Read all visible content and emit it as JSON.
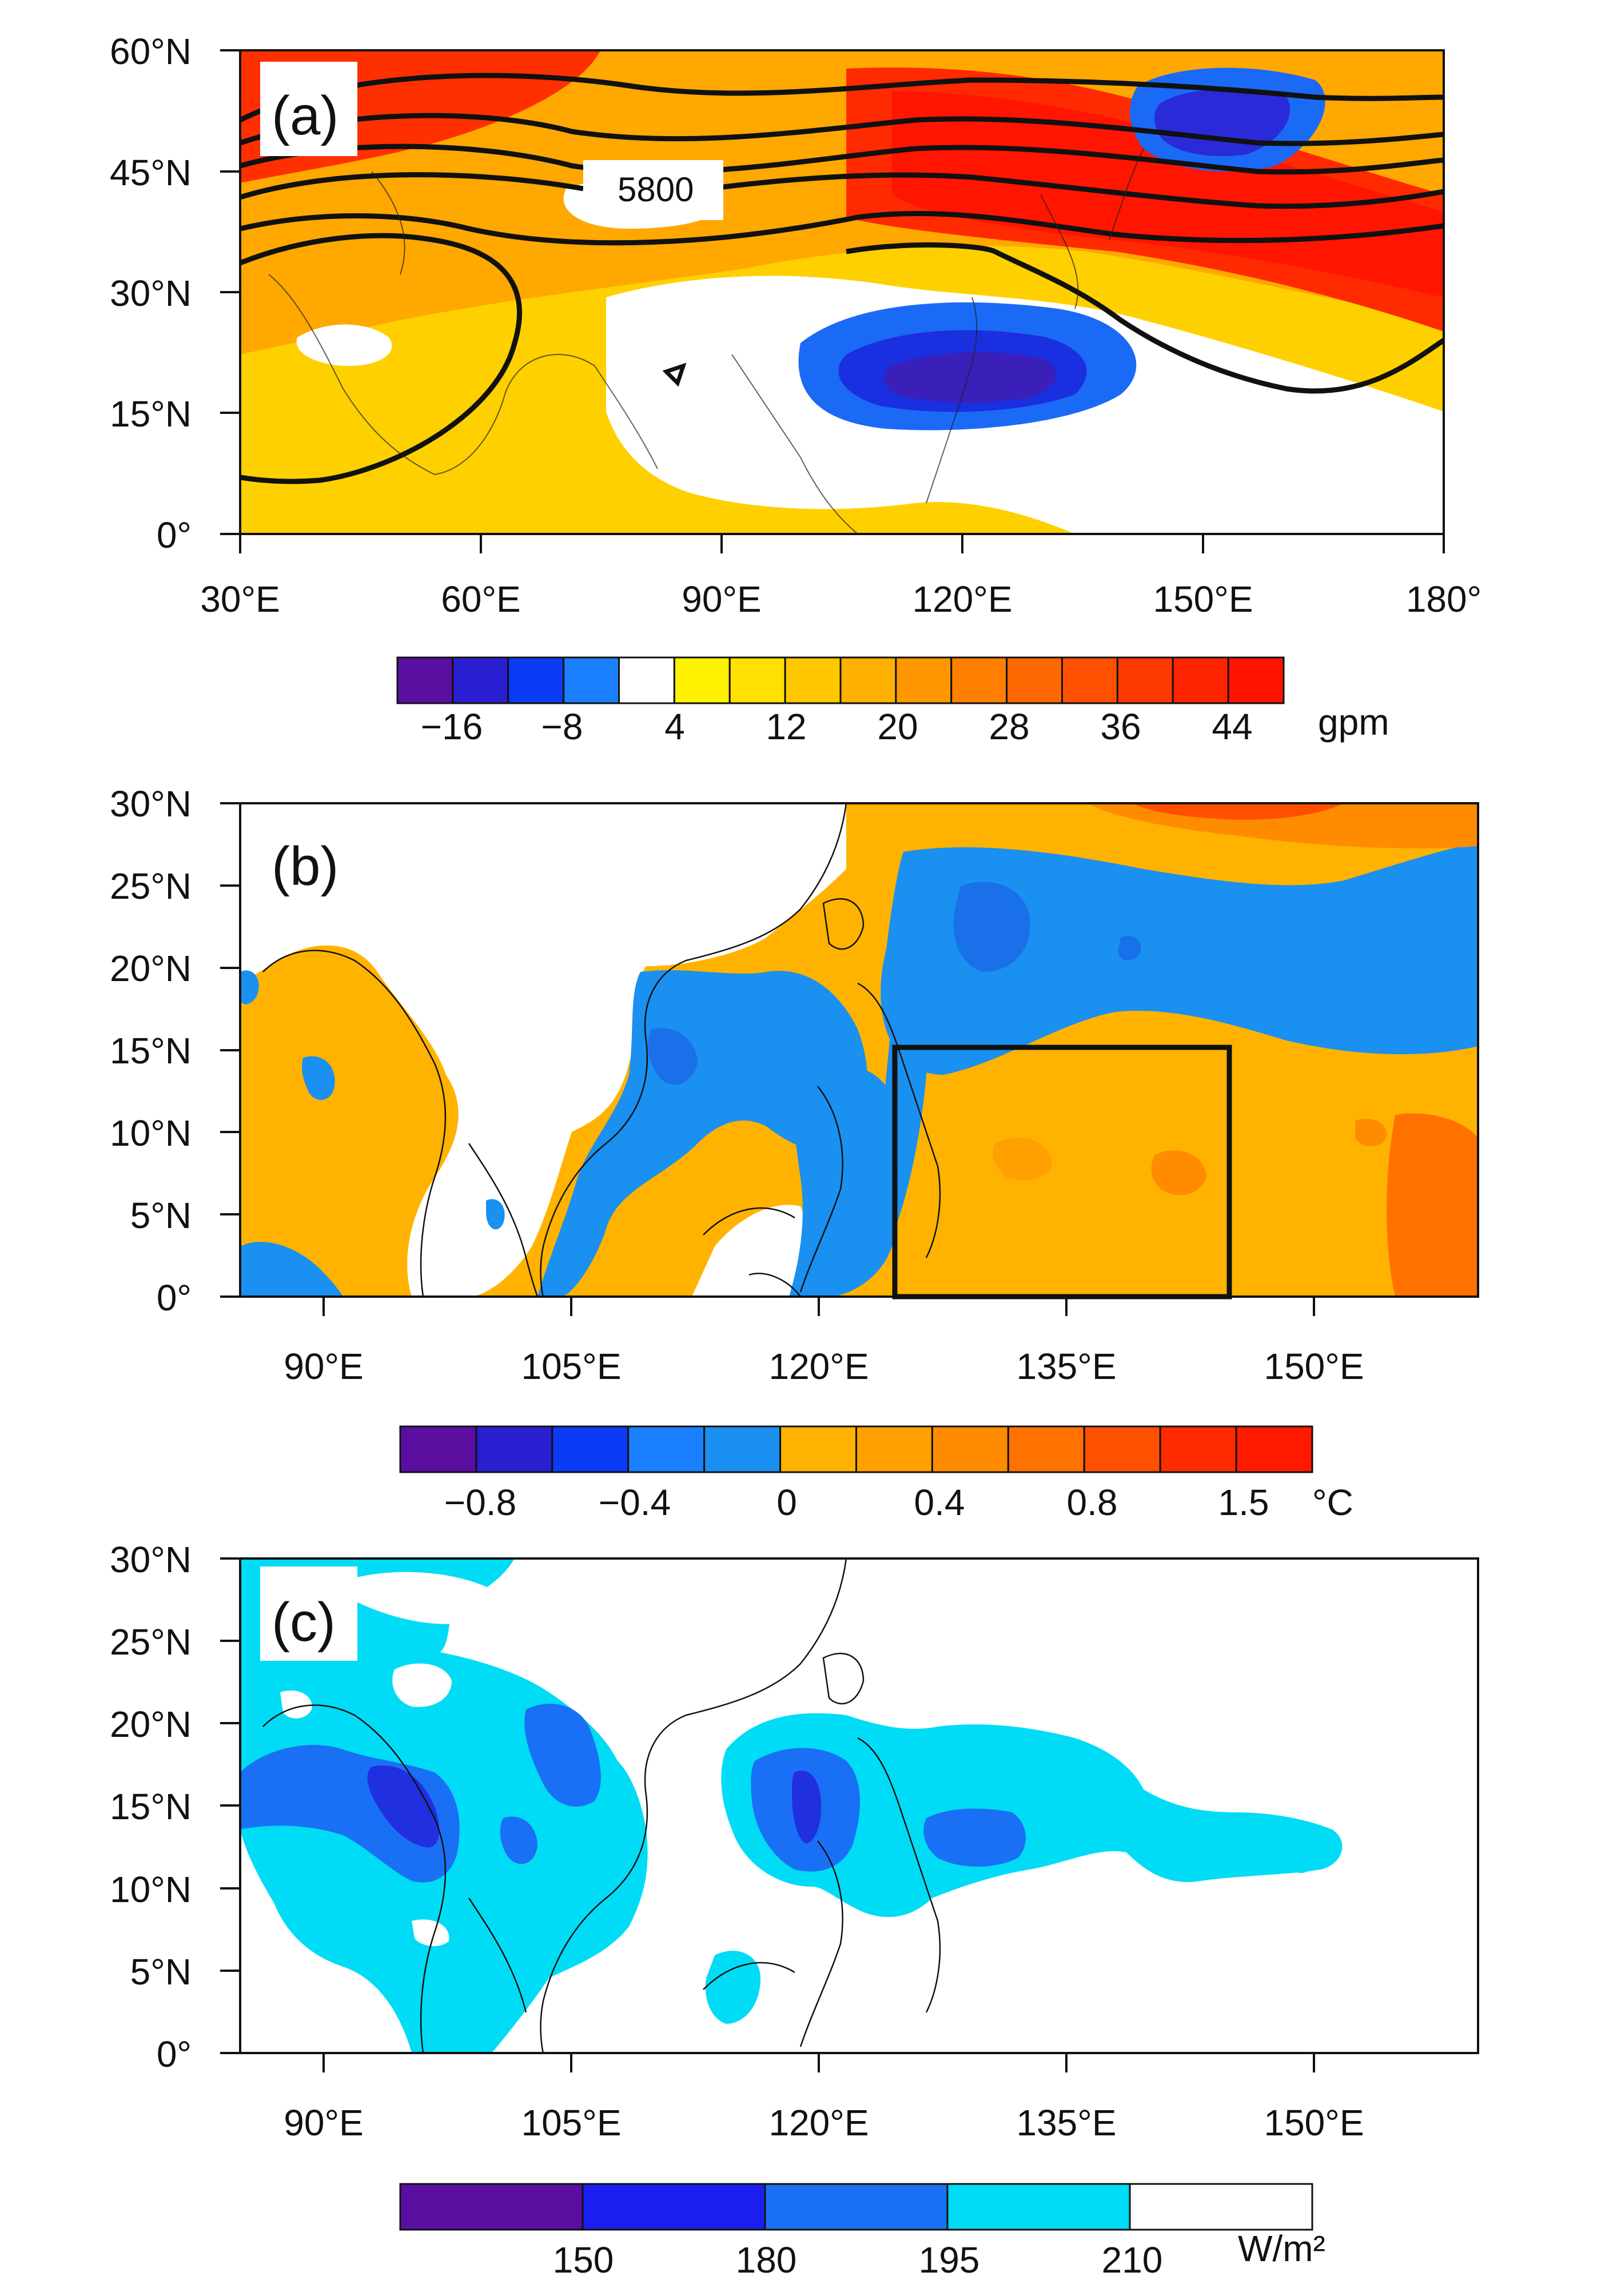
{
  "panels": [
    {
      "id": "a",
      "label": "(a)",
      "lon_ticks": [
        "30°E",
        "60°E",
        "90°E",
        "120°E",
        "150°E",
        "180°"
      ],
      "lat_ticks": [
        "60°N",
        "45°N",
        "30°N",
        "15°N",
        "0°"
      ],
      "contour_label": "5800",
      "colorbar": {
        "colors": [
          "#5a0fa0",
          "#2a1fd0",
          "#0a3cf5",
          "#1a80ff",
          "#ffffff",
          "#fff200",
          "#ffe000",
          "#ffc800",
          "#ffb000",
          "#ff9800",
          "#ff8000",
          "#ff6800",
          "#ff5000",
          "#ff3a00",
          "#ff2400",
          "#ff1200"
        ],
        "labels": [
          "−16",
          "−8",
          "4",
          "12",
          "20",
          "28",
          "36",
          "44"
        ],
        "unit": "gpm"
      }
    },
    {
      "id": "b",
      "label": "(b)",
      "lon_ticks": [
        "90°E",
        "105°E",
        "120°E",
        "135°E",
        "150°E"
      ],
      "lat_ticks": [
        "30°N",
        "25°N",
        "20°N",
        "15°N",
        "10°N",
        "5°N",
        "0°"
      ],
      "colorbar": {
        "colors": [
          "#5a0fa0",
          "#2a1fd0",
          "#0a3cf5",
          "#1a80ff",
          "#1a90f0",
          "#ffb300",
          "#ffa000",
          "#ff8c00",
          "#ff7200",
          "#ff5000",
          "#ff2a00",
          "#ff1a00"
        ],
        "labels": [
          "−0.8",
          "−0.4",
          "0",
          "0.4",
          "0.8",
          "1.5"
        ],
        "unit": "°C"
      }
    },
    {
      "id": "c",
      "label": "(c)",
      "lon_ticks": [
        "90°E",
        "105°E",
        "120°E",
        "135°E",
        "150°E"
      ],
      "lat_ticks": [
        "30°N",
        "25°N",
        "20°N",
        "15°N",
        "10°N",
        "5°N",
        "0°"
      ],
      "colorbar": {
        "colors": [
          "#5a0fa0",
          "#1a1ff0",
          "#1a70f5",
          "#00dcf5",
          "#ffffff"
        ],
        "labels": [
          "150",
          "180",
          "195",
          "210"
        ],
        "unit": "W/m²"
      }
    }
  ]
}
